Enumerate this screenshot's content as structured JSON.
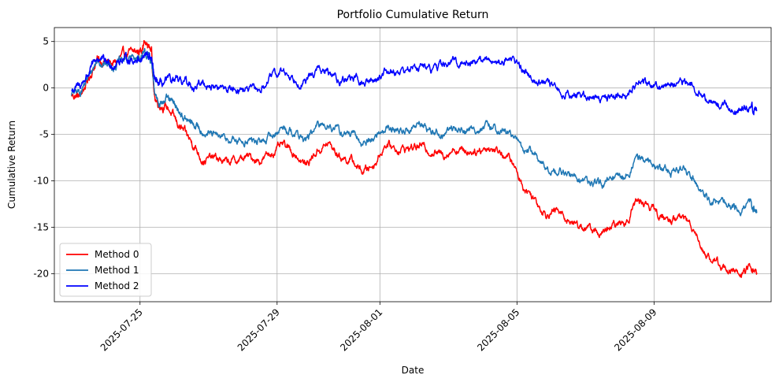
{
  "chart_data": {
    "type": "line",
    "title": "Portfolio Cumulative Return",
    "xlabel": "Date",
    "ylabel": "Cumulative Return",
    "xlim": [
      "2025-07-22T12:00",
      "2025-08-12T10:00"
    ],
    "ylim": [
      -23,
      6.5
    ],
    "grid": true,
    "legend_position": "lower-left",
    "x_ticks": [
      "2025-07-25",
      "2025-07-29",
      "2025-08-01",
      "2025-08-05",
      "2025-08-09"
    ],
    "y_ticks": [
      5,
      0,
      -5,
      -10,
      -15,
      -20
    ],
    "series": [
      {
        "name": "Method 0",
        "color": "#ff0000",
        "points": [
          [
            "2025-07-23T00:00",
            -0.8
          ],
          [
            "2025-07-23T06:00",
            -0.9
          ],
          [
            "2025-07-23T12:00",
            1.0
          ],
          [
            "2025-07-23T18:00",
            3.0
          ],
          [
            "2025-07-24T00:00",
            2.8
          ],
          [
            "2025-07-24T06:00",
            2.6
          ],
          [
            "2025-07-24T12:00",
            3.5
          ],
          [
            "2025-07-24T18:00",
            3.8
          ],
          [
            "2025-07-25T00:00",
            4.0
          ],
          [
            "2025-07-25T03:00",
            4.8
          ],
          [
            "2025-07-25T08:00",
            4.2
          ],
          [
            "2025-07-25T10:00",
            -1.0
          ],
          [
            "2025-07-25T14:00",
            -1.8
          ],
          [
            "2025-07-25T20:00",
            -2.2
          ],
          [
            "2025-07-26T02:00",
            -3.8
          ],
          [
            "2025-07-26T08:00",
            -5.0
          ],
          [
            "2025-07-26T14:00",
            -6.2
          ],
          [
            "2025-07-26T20:00",
            -7.8
          ],
          [
            "2025-07-27T04:00",
            -7.5
          ],
          [
            "2025-07-27T12:00",
            -8.0
          ],
          [
            "2025-07-27T20:00",
            -7.8
          ],
          [
            "2025-07-28T04:00",
            -7.4
          ],
          [
            "2025-07-28T12:00",
            -7.8
          ],
          [
            "2025-07-28T20:00",
            -7.0
          ],
          [
            "2025-07-29T04:00",
            -6.2
          ],
          [
            "2025-07-29T12:00",
            -7.0
          ],
          [
            "2025-07-29T20:00",
            -8.3
          ],
          [
            "2025-07-30T04:00",
            -6.8
          ],
          [
            "2025-07-30T12:00",
            -6.0
          ],
          [
            "2025-07-30T20:00",
            -7.4
          ],
          [
            "2025-07-31T04:00",
            -7.8
          ],
          [
            "2025-07-31T12:00",
            -9.0
          ],
          [
            "2025-07-31T20:00",
            -8.2
          ],
          [
            "2025-08-01T04:00",
            -6.0
          ],
          [
            "2025-08-01T12:00",
            -6.6
          ],
          [
            "2025-08-01T20:00",
            -6.5
          ],
          [
            "2025-08-02T04:00",
            -6.2
          ],
          [
            "2025-08-02T12:00",
            -6.8
          ],
          [
            "2025-08-02T20:00",
            -7.2
          ],
          [
            "2025-08-03T04:00",
            -6.5
          ],
          [
            "2025-08-03T12:00",
            -6.8
          ],
          [
            "2025-08-03T20:00",
            -6.7
          ],
          [
            "2025-08-04T04:00",
            -6.4
          ],
          [
            "2025-08-04T12:00",
            -6.8
          ],
          [
            "2025-08-04T20:00",
            -7.8
          ],
          [
            "2025-08-05T04:00",
            -10.5
          ],
          [
            "2025-08-05T12:00",
            -11.8
          ],
          [
            "2025-08-05T20:00",
            -13.5
          ],
          [
            "2025-08-06T04:00",
            -13.2
          ],
          [
            "2025-08-06T12:00",
            -14.2
          ],
          [
            "2025-08-06T20:00",
            -14.8
          ],
          [
            "2025-08-07T04:00",
            -15.2
          ],
          [
            "2025-08-07T12:00",
            -15.8
          ],
          [
            "2025-08-07T20:00",
            -14.8
          ],
          [
            "2025-08-08T04:00",
            -14.5
          ],
          [
            "2025-08-08T12:00",
            -12.0
          ],
          [
            "2025-08-08T20:00",
            -12.5
          ],
          [
            "2025-08-09T04:00",
            -13.8
          ],
          [
            "2025-08-09T12:00",
            -14.3
          ],
          [
            "2025-08-09T20:00",
            -13.8
          ],
          [
            "2025-08-10T04:00",
            -15.0
          ],
          [
            "2025-08-10T12:00",
            -18.0
          ],
          [
            "2025-08-10T20:00",
            -18.8
          ],
          [
            "2025-08-11T04:00",
            -19.5
          ],
          [
            "2025-08-11T12:00",
            -20.2
          ],
          [
            "2025-08-11T20:00",
            -19.3
          ],
          [
            "2025-08-12T00:00",
            -20.0
          ]
        ]
      },
      {
        "name": "Method 1",
        "color": "#1f77b4",
        "points": [
          [
            "2025-07-23T00:00",
            -0.6
          ],
          [
            "2025-07-23T06:00",
            -0.4
          ],
          [
            "2025-07-23T12:00",
            1.2
          ],
          [
            "2025-07-23T18:00",
            3.0
          ],
          [
            "2025-07-24T00:00",
            2.6
          ],
          [
            "2025-07-24T06:00",
            2.4
          ],
          [
            "2025-07-24T12:00",
            3.0
          ],
          [
            "2025-07-24T18:00",
            3.2
          ],
          [
            "2025-07-25T00:00",
            3.3
          ],
          [
            "2025-07-25T04:00",
            3.6
          ],
          [
            "2025-07-25T08:00",
            3.0
          ],
          [
            "2025-07-25T10:00",
            -0.6
          ],
          [
            "2025-07-25T14:00",
            -1.5
          ],
          [
            "2025-07-25T20:00",
            -1.3
          ],
          [
            "2025-07-26T02:00",
            -2.2
          ],
          [
            "2025-07-26T08:00",
            -3.5
          ],
          [
            "2025-07-26T14:00",
            -4.0
          ],
          [
            "2025-07-26T20:00",
            -4.6
          ],
          [
            "2025-07-27T04:00",
            -5.2
          ],
          [
            "2025-07-27T12:00",
            -5.5
          ],
          [
            "2025-07-27T20:00",
            -5.8
          ],
          [
            "2025-07-28T04:00",
            -5.6
          ],
          [
            "2025-07-28T12:00",
            -5.9
          ],
          [
            "2025-07-28T20:00",
            -5.2
          ],
          [
            "2025-07-29T04:00",
            -4.2
          ],
          [
            "2025-07-29T12:00",
            -4.8
          ],
          [
            "2025-07-29T20:00",
            -5.6
          ],
          [
            "2025-07-30T04:00",
            -4.2
          ],
          [
            "2025-07-30T12:00",
            -3.8
          ],
          [
            "2025-07-30T20:00",
            -4.8
          ],
          [
            "2025-07-31T04:00",
            -5.0
          ],
          [
            "2025-07-31T12:00",
            -6.0
          ],
          [
            "2025-07-31T20:00",
            -5.4
          ],
          [
            "2025-08-01T04:00",
            -4.2
          ],
          [
            "2025-08-01T12:00",
            -4.6
          ],
          [
            "2025-08-01T20:00",
            -4.5
          ],
          [
            "2025-08-02T04:00",
            -3.9
          ],
          [
            "2025-08-02T12:00",
            -4.6
          ],
          [
            "2025-08-02T20:00",
            -5.0
          ],
          [
            "2025-08-03T04:00",
            -4.3
          ],
          [
            "2025-08-03T12:00",
            -4.6
          ],
          [
            "2025-08-03T20:00",
            -4.4
          ],
          [
            "2025-08-04T04:00",
            -4.2
          ],
          [
            "2025-08-04T12:00",
            -4.5
          ],
          [
            "2025-08-04T20:00",
            -5.0
          ],
          [
            "2025-08-05T04:00",
            -6.5
          ],
          [
            "2025-08-05T12:00",
            -7.0
          ],
          [
            "2025-08-05T20:00",
            -8.8
          ],
          [
            "2025-08-06T04:00",
            -8.9
          ],
          [
            "2025-08-06T12:00",
            -9.4
          ],
          [
            "2025-08-06T20:00",
            -9.8
          ],
          [
            "2025-08-07T04:00",
            -10.2
          ],
          [
            "2025-08-07T12:00",
            -10.5
          ],
          [
            "2025-08-07T20:00",
            -9.8
          ],
          [
            "2025-08-08T04:00",
            -9.5
          ],
          [
            "2025-08-08T12:00",
            -7.5
          ],
          [
            "2025-08-08T20:00",
            -7.8
          ],
          [
            "2025-08-09T04:00",
            -8.6
          ],
          [
            "2025-08-09T12:00",
            -9.0
          ],
          [
            "2025-08-09T20:00",
            -8.6
          ],
          [
            "2025-08-10T04:00",
            -9.5
          ],
          [
            "2025-08-10T12:00",
            -11.8
          ],
          [
            "2025-08-10T20:00",
            -12.3
          ],
          [
            "2025-08-11T04:00",
            -12.8
          ],
          [
            "2025-08-11T12:00",
            -13.2
          ],
          [
            "2025-08-11T20:00",
            -12.6
          ],
          [
            "2025-08-12T00:00",
            -13.3
          ]
        ]
      },
      {
        "name": "Method 2",
        "color": "#0000ff",
        "points": [
          [
            "2025-07-23T00:00",
            -0.3
          ],
          [
            "2025-07-23T06:00",
            0.2
          ],
          [
            "2025-07-23T12:00",
            1.6
          ],
          [
            "2025-07-23T18:00",
            3.2
          ],
          [
            "2025-07-24T00:00",
            2.8
          ],
          [
            "2025-07-24T06:00",
            2.5
          ],
          [
            "2025-07-24T12:00",
            3.2
          ],
          [
            "2025-07-24T18:00",
            3.0
          ],
          [
            "2025-07-25T00:00",
            3.2
          ],
          [
            "2025-07-25T04:00",
            3.5
          ],
          [
            "2025-07-25T08:00",
            3.2
          ],
          [
            "2025-07-25T10:00",
            0.8
          ],
          [
            "2025-07-25T14:00",
            0.3
          ],
          [
            "2025-07-25T20:00",
            0.8
          ],
          [
            "2025-07-26T02:00",
            0.6
          ],
          [
            "2025-07-26T08:00",
            0.7
          ],
          [
            "2025-07-26T14:00",
            0.2
          ],
          [
            "2025-07-26T20:00",
            0.5
          ],
          [
            "2025-07-27T04:00",
            0.1
          ],
          [
            "2025-07-27T12:00",
            -0.1
          ],
          [
            "2025-07-27T20:00",
            0.0
          ],
          [
            "2025-07-28T04:00",
            -0.2
          ],
          [
            "2025-07-28T12:00",
            -0.3
          ],
          [
            "2025-07-28T20:00",
            1.2
          ],
          [
            "2025-07-29T04:00",
            1.8
          ],
          [
            "2025-07-29T12:00",
            1.0
          ],
          [
            "2025-07-29T20:00",
            0.6
          ],
          [
            "2025-07-30T04:00",
            2.0
          ],
          [
            "2025-07-30T12:00",
            1.5
          ],
          [
            "2025-07-30T20:00",
            0.8
          ],
          [
            "2025-07-31T04:00",
            1.2
          ],
          [
            "2025-07-31T12:00",
            0.5
          ],
          [
            "2025-07-31T20:00",
            0.8
          ],
          [
            "2025-08-01T04:00",
            1.9
          ],
          [
            "2025-08-01T12:00",
            1.8
          ],
          [
            "2025-08-01T20:00",
            2.0
          ],
          [
            "2025-08-02T04:00",
            2.4
          ],
          [
            "2025-08-02T12:00",
            2.0
          ],
          [
            "2025-08-02T20:00",
            2.5
          ],
          [
            "2025-08-03T04:00",
            2.8
          ],
          [
            "2025-08-03T12:00",
            2.7
          ],
          [
            "2025-08-03T20:00",
            3.0
          ],
          [
            "2025-08-04T04:00",
            3.0
          ],
          [
            "2025-08-04T12:00",
            2.8
          ],
          [
            "2025-08-04T20:00",
            3.3
          ],
          [
            "2025-08-05T04:00",
            2.0
          ],
          [
            "2025-08-05T12:00",
            1.0
          ],
          [
            "2025-08-05T20:00",
            0.5
          ],
          [
            "2025-08-06T04:00",
            -0.3
          ],
          [
            "2025-08-06T12:00",
            -0.6
          ],
          [
            "2025-08-06T20:00",
            -0.8
          ],
          [
            "2025-08-07T04:00",
            -0.9
          ],
          [
            "2025-08-07T12:00",
            -1.1
          ],
          [
            "2025-08-07T20:00",
            -0.8
          ],
          [
            "2025-08-08T04:00",
            -0.6
          ],
          [
            "2025-08-08T12:00",
            0.6
          ],
          [
            "2025-08-08T20:00",
            0.5
          ],
          [
            "2025-08-09T04:00",
            0.4
          ],
          [
            "2025-08-09T12:00",
            0.3
          ],
          [
            "2025-08-09T20:00",
            0.5
          ],
          [
            "2025-08-10T04:00",
            0.4
          ],
          [
            "2025-08-10T12:00",
            -1.2
          ],
          [
            "2025-08-10T20:00",
            -1.7
          ],
          [
            "2025-08-11T04:00",
            -2.0
          ],
          [
            "2025-08-11T12:00",
            -2.5
          ],
          [
            "2025-08-11T20:00",
            -2.3
          ],
          [
            "2025-08-12T00:00",
            -2.4
          ]
        ]
      }
    ]
  }
}
